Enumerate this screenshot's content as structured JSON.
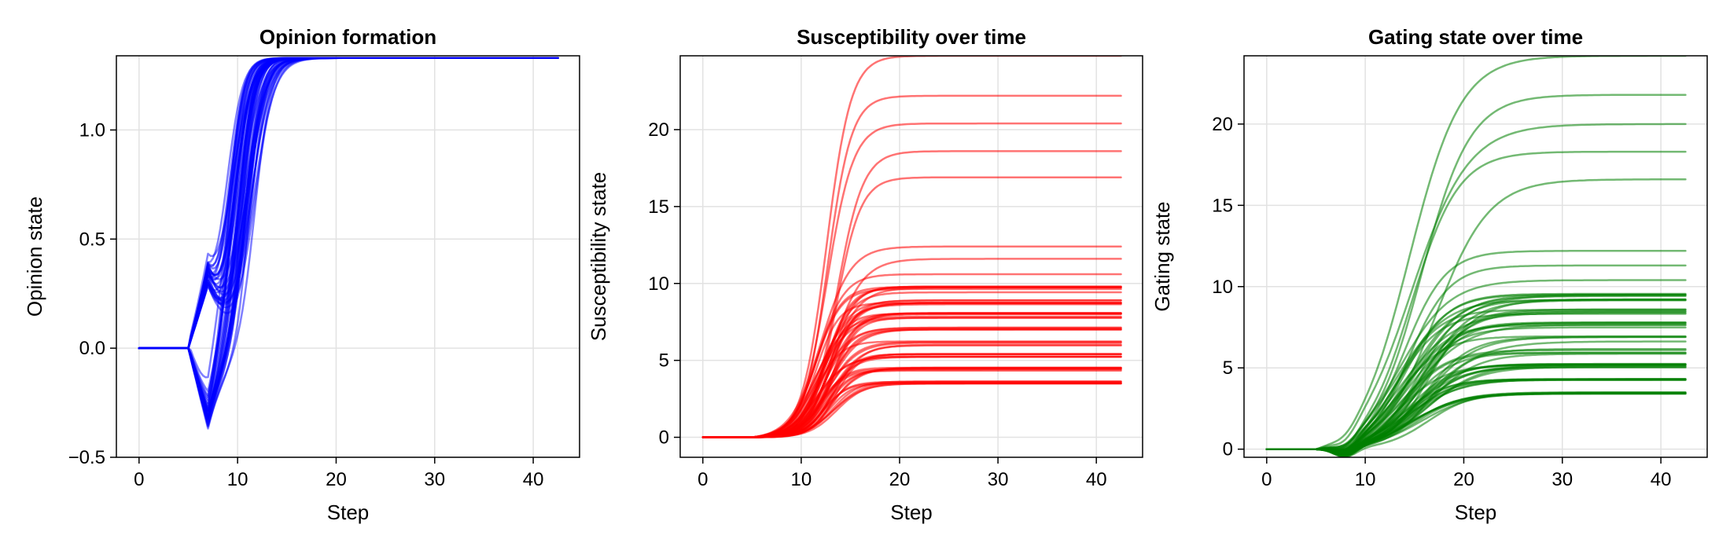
{
  "chart_data": [
    {
      "type": "line",
      "title": "Opinion formation",
      "xlabel": "Step",
      "ylabel": "Opinion state",
      "xlim": [
        -2.3,
        44.7
      ],
      "ylim": [
        -0.5,
        1.34
      ],
      "xticks": [
        0,
        10,
        20,
        30,
        40
      ],
      "yticks": [
        -0.5,
        0.0,
        0.5,
        1.0
      ],
      "ytick_labels": [
        "−0.5",
        "0.0",
        "0.5",
        "1.0"
      ],
      "grid": true,
      "color": "#0000ff",
      "line_alpha": 0.5,
      "series_count": 60,
      "description_of_dynamics": {
        "x_range": [
          0,
          42.5
        ],
        "initial_value": 0.0,
        "branch_step": 5,
        "branch_peak_step": 7,
        "branch_values": [
          0.36,
          -0.38
        ],
        "final_value": 1.33,
        "transition_midpoint_range": [
          8.8,
          11.8
        ]
      }
    },
    {
      "type": "line",
      "title": "Susceptibility over time",
      "xlabel": "Step",
      "ylabel": "Susceptibility state",
      "xlim": [
        -2.3,
        44.7
      ],
      "ylim": [
        -1.3,
        24.8
      ],
      "xticks": [
        0,
        10,
        20,
        30,
        40
      ],
      "yticks": [
        0,
        5,
        10,
        15,
        20
      ],
      "ytick_labels": [
        "0",
        "5",
        "10",
        "15",
        "20"
      ],
      "grid": true,
      "color": "#ff0000",
      "line_alpha": 0.55,
      "series_count": 60,
      "final_levels": [
        24.8,
        22.2,
        20.4,
        18.6,
        16.9,
        12.4,
        11.6,
        10.6,
        9.8,
        8.9,
        8.0,
        7.1,
        6.2,
        5.4,
        4.5,
        3.6
      ]
    },
    {
      "type": "line",
      "title": "Gating state over time",
      "xlabel": "Step",
      "ylabel": "Gating state",
      "xlim": [
        -2.3,
        44.7
      ],
      "ylim": [
        -0.5,
        24.2
      ],
      "xticks": [
        0,
        10,
        20,
        30,
        40
      ],
      "yticks": [
        0,
        5,
        10,
        15,
        20
      ],
      "ytick_labels": [
        "0",
        "5",
        "10",
        "15",
        "20"
      ],
      "grid": true,
      "color": "#008000",
      "line_alpha": 0.55,
      "series_count": 60,
      "final_levels": [
        24.2,
        21.8,
        20.0,
        18.3,
        16.6,
        12.2,
        11.3,
        10.4,
        9.5,
        8.6,
        7.8,
        6.9,
        6.1,
        5.2,
        4.3,
        3.5
      ]
    }
  ]
}
